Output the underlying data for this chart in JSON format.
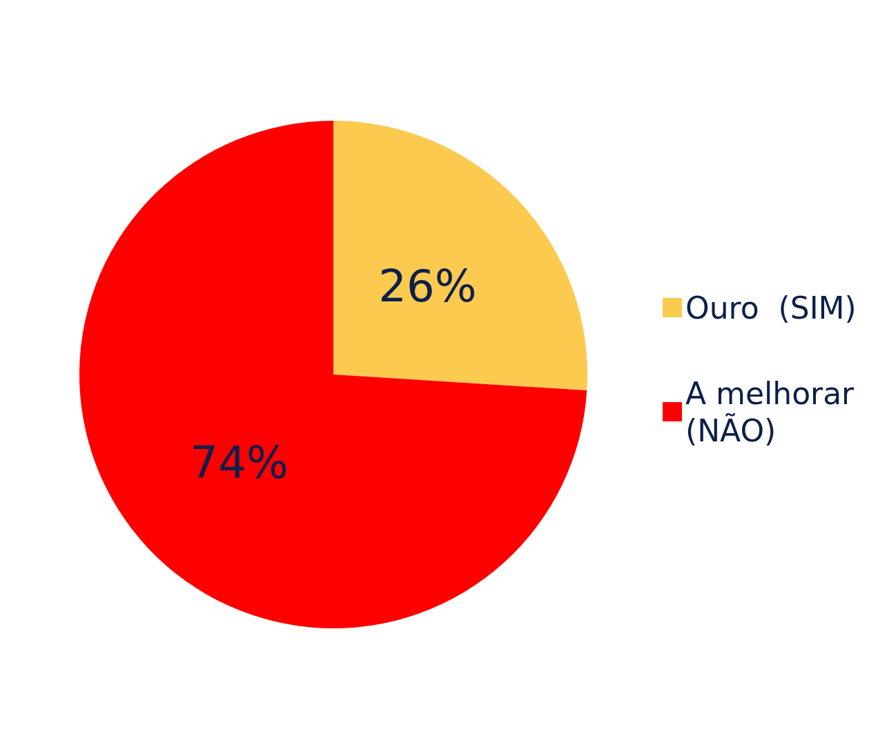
{
  "chart_data": {
    "type": "pie",
    "categories": [
      "Ouro  (SIM)",
      "A melhorar (NÃO)"
    ],
    "values": [
      26,
      74
    ],
    "colors": [
      "#fdca50",
      "#ff0000"
    ],
    "value_labels": [
      "26%",
      "74%"
    ],
    "legend": "right"
  }
}
